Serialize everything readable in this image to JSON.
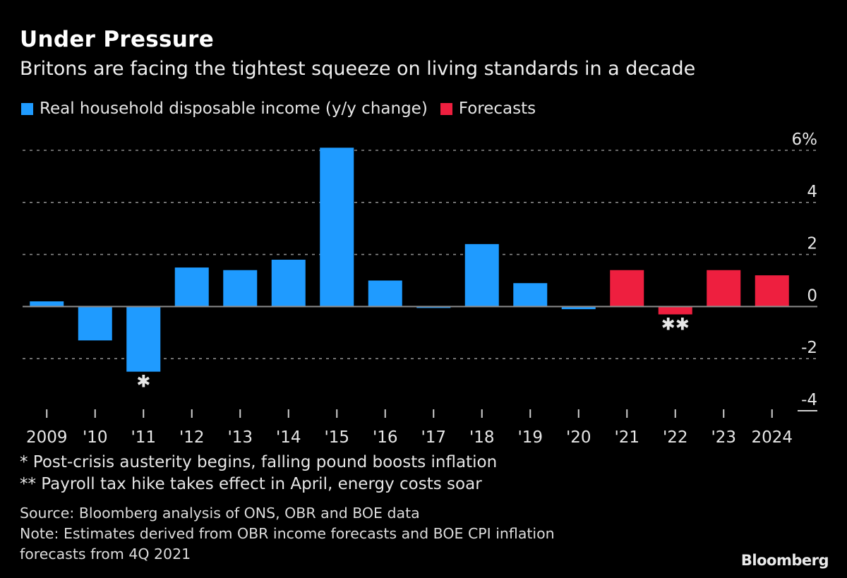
{
  "header": {
    "title": "Under Pressure",
    "subtitle": "Britons are facing the tightest squeeze on living standards in a decade"
  },
  "colors": {
    "actual": "#1f9bff",
    "forecast": "#ee1f3f",
    "background": "#000000",
    "grid": "#8a8a8a"
  },
  "chart_data": {
    "type": "bar",
    "title": "Under Pressure",
    "subtitle": "Britons are facing the tightest squeeze on living standards in a decade",
    "xlabel": "",
    "ylabel": "",
    "ylim": [
      -4,
      6
    ],
    "yticks": [
      6,
      4,
      2,
      0,
      -2,
      -4
    ],
    "ytick_labels": [
      "6%",
      "4",
      "2",
      "0",
      "-2",
      "-4"
    ],
    "grid": true,
    "legend_position": "top-left",
    "categories": [
      "2009",
      "'10",
      "'11",
      "'12",
      "'13",
      "'14",
      "'15",
      "'16",
      "'17",
      "'18",
      "'19",
      "'20",
      "'21",
      "'22",
      "'23",
      "2024"
    ],
    "series": [
      {
        "name": "Real household disposable income (y/y change)",
        "color": "#1f9bff",
        "values": [
          0.2,
          -1.3,
          -2.5,
          1.5,
          1.4,
          1.8,
          6.1,
          1.0,
          -0.05,
          2.4,
          0.9,
          -0.1,
          null,
          null,
          null,
          null
        ]
      },
      {
        "name": "Forecasts",
        "color": "#ee1f3f",
        "values": [
          null,
          null,
          null,
          null,
          null,
          null,
          null,
          null,
          null,
          null,
          null,
          null,
          1.4,
          -0.3,
          1.4,
          1.2
        ]
      }
    ],
    "annotations": [
      {
        "category": "'11",
        "text": "*"
      },
      {
        "category": "'22",
        "text": "**"
      }
    ]
  },
  "footnotes": [
    "* Post-crisis austerity begins, falling pound boosts inflation",
    "** Payroll tax hike takes effect in April, energy costs soar"
  ],
  "source": {
    "line1": "Source: Bloomberg analysis of ONS, OBR and BOE data",
    "line2": "Note: Estimates derived from OBR income forecasts and BOE CPI inflation",
    "line3": "forecasts from 4Q 2021"
  },
  "brand": "Bloomberg"
}
